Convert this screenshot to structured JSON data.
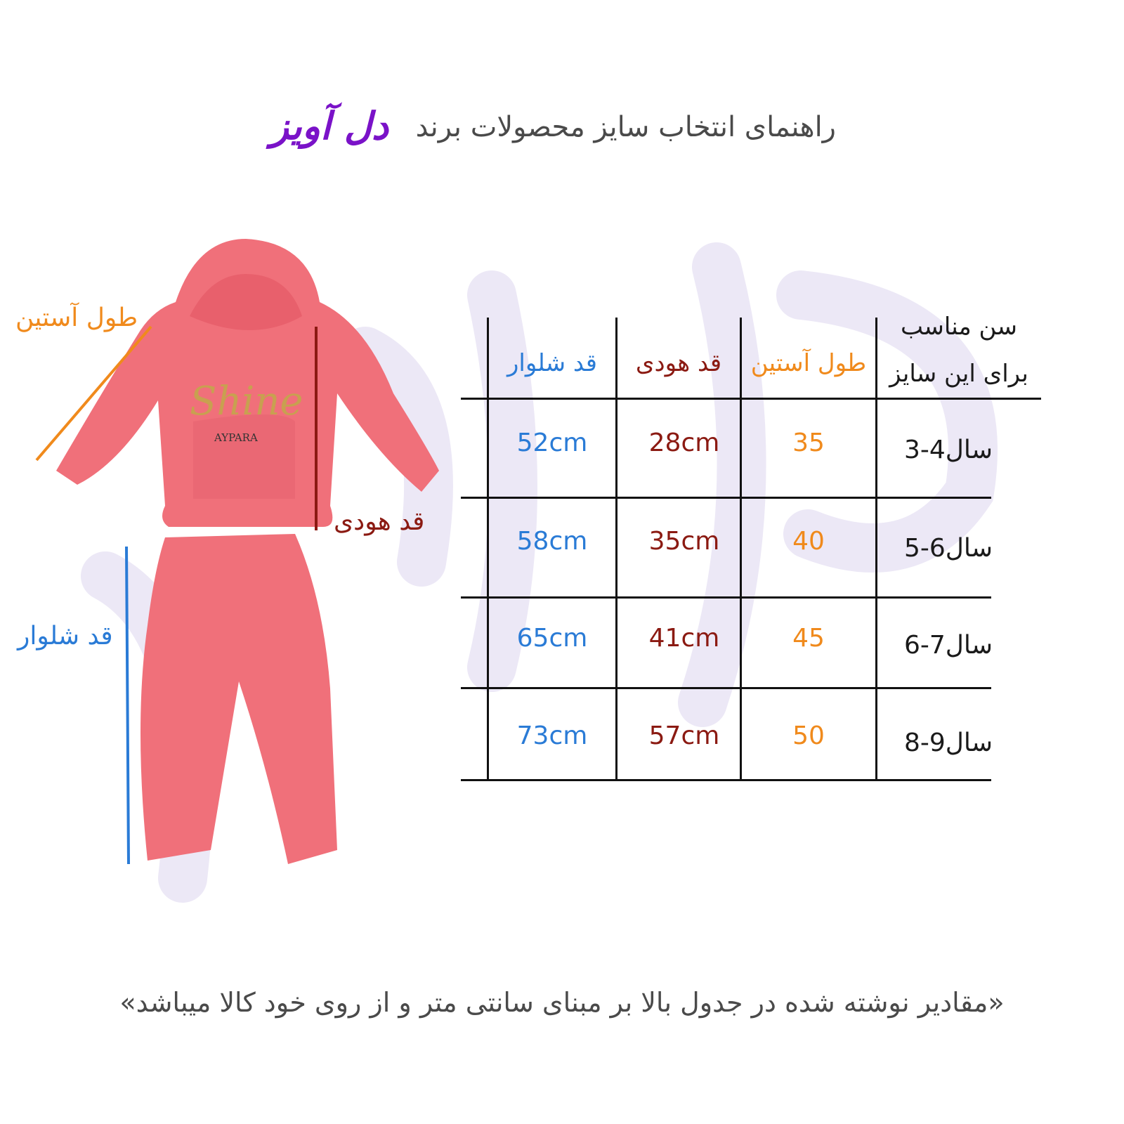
{
  "header": {
    "title": "راهنمای انتخاب سایز محصولات برند",
    "brand": "دل آویز"
  },
  "colors": {
    "pants": "#2a7bd6",
    "hoodie": "#8b1a12",
    "sleeve": "#f08a1c",
    "brand": "#7a12c8",
    "garment": "#f0707a"
  },
  "garment_labels": {
    "sleeve": "طول آستین",
    "hoodie": "قد هودی",
    "pants": "قد شلوار",
    "print_text": "AYPARA"
  },
  "table": {
    "headers": {
      "age_line1": "سن مناسب",
      "age_line2": "برای این سایز",
      "sleeve": "طول آستین",
      "hoodie": "قد هودی",
      "pants": "قد شلوار"
    },
    "rows": [
      {
        "age": "3-4سال",
        "sleeve": "35",
        "hoodie": "28cm",
        "pants": "52cm"
      },
      {
        "age": "5-6سال",
        "sleeve": "40",
        "hoodie": "35cm",
        "pants": "58cm"
      },
      {
        "age": "6-7سال",
        "sleeve": "45",
        "hoodie": "41cm",
        "pants": "65cm"
      },
      {
        "age": "8-9سال",
        "sleeve": "50",
        "hoodie": "57cm",
        "pants": "73cm"
      }
    ]
  },
  "footer": "«مقادیر نوشته شده در جدول بالا بر مبنای سانتی متر و از روی خود کالا میباشد»"
}
